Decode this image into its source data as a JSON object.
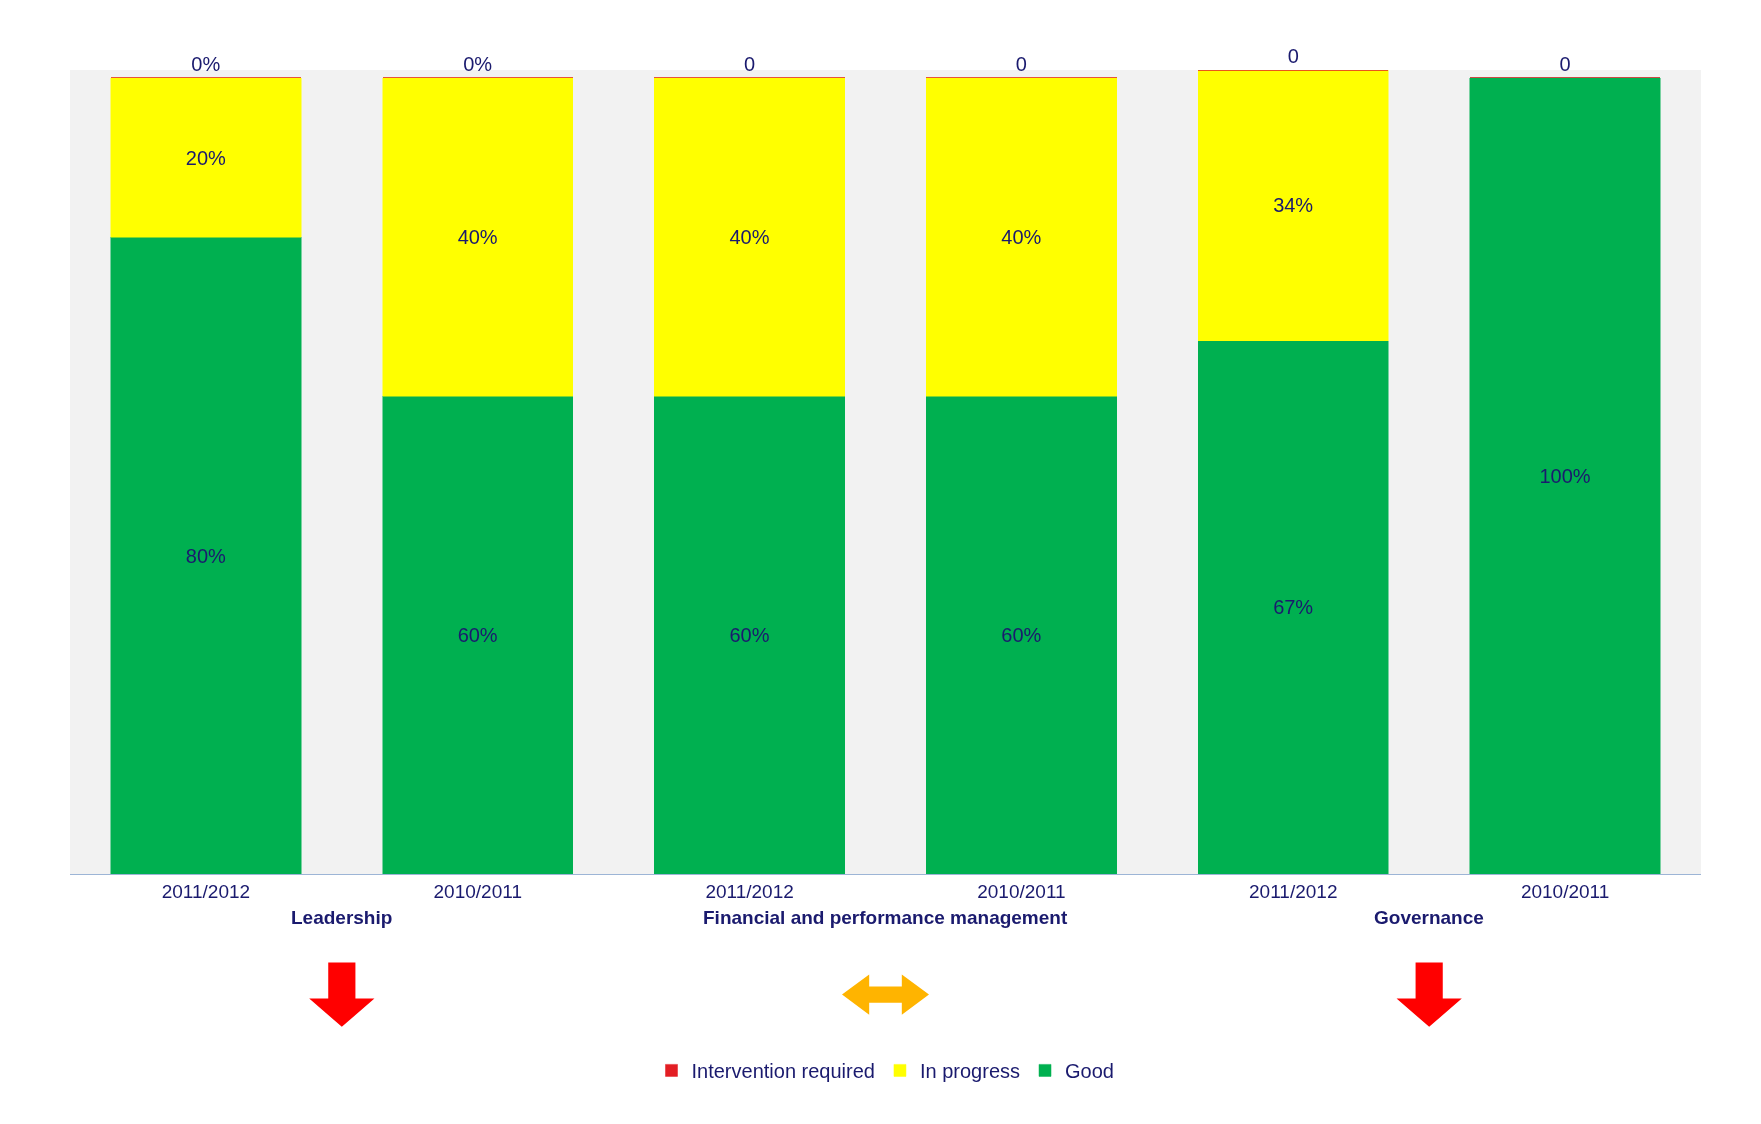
{
  "chart_data": {
    "type": "bar",
    "stacked": true,
    "tick_labels": "x",
    "categories": [
      "2011/2012",
      "2010/2011",
      "2011/2012",
      "2010/2011",
      "2011/2012",
      "2010/2011"
    ],
    "annotations": [
      "Leadership",
      "Financial and performance management",
      "Governance"
    ],
    "ylim": [
      0,
      101
    ],
    "series": [
      {
        "name": "Good",
        "color": "#00b050",
        "values": [
          80,
          60,
          60,
          60,
          67,
          100
        ],
        "value_labels": [
          "80%",
          "60%",
          "60%",
          "60%",
          "67%",
          "100%"
        ]
      },
      {
        "name": "In progress",
        "color": "#ffff00",
        "values": [
          20,
          40,
          40,
          40,
          34,
          null
        ],
        "value_labels": [
          "20%",
          "40%",
          "40%",
          "40%",
          "34%",
          null
        ]
      },
      {
        "name": "Intervention required",
        "color": "#e31e24",
        "values": [
          0,
          0,
          0,
          0,
          0,
          0
        ],
        "value_labels": [
          "0%",
          "0%",
          "0",
          "0",
          "0",
          "0"
        ]
      }
    ],
    "legend": "bottom",
    "grid": false
  }
}
